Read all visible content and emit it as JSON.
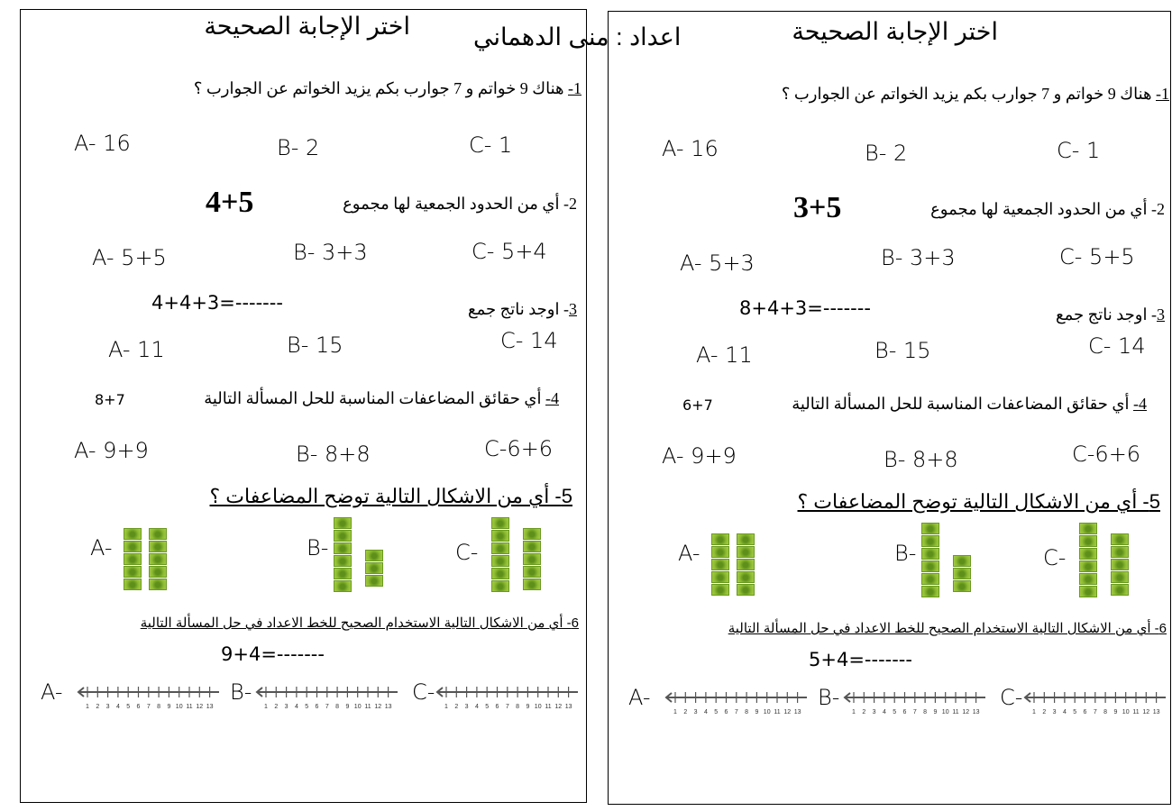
{
  "author": "اعداد : منى الدهماني",
  "colors": {
    "cube": "#8dbb32",
    "line": "#555555"
  },
  "number_line_labels": [
    "1",
    "2",
    "3",
    "4",
    "5",
    "6",
    "7",
    "8",
    "9",
    "10",
    "11",
    "12",
    "13"
  ],
  "worksheets": [
    {
      "title": "اختر الإجابة الصحيحة",
      "q1": {
        "num": "1-",
        "text": " هناك 9 خواتم و 7 جوارب بكم يزيد الخواتم عن الجوارب ؟",
        "a": "A- 16",
        "b": "B- 2",
        "c": "C- 1"
      },
      "q2": {
        "text": "2- أي من الحدود الجمعية لها مجموع",
        "expr": "4+5",
        "a": "A- 5+5",
        "b": "B- 3+3",
        "c": "C- 5+4"
      },
      "q3": {
        "num": "3",
        "text": "- اوجد ناتج  جمع",
        "expr": "4+4+3=-------",
        "a": "A- 11",
        "b": "B- 15",
        "c": "C- 14"
      },
      "q4": {
        "num": "4-",
        "text": "  أي حقائق المضاعفات المناسبة للحل المسألة التالية",
        "expr": "8+7",
        "a": "A- 9+9",
        "b": "B- 8+8",
        "c": "C-6+6"
      },
      "q5": {
        "text": "5-  أي من الاشكال التالية توضح المضاعفات ؟",
        "a": "A-",
        "b": "B-",
        "c": "C-",
        "figures": [
          [
            5,
            5
          ],
          [
            6,
            3
          ],
          [
            6,
            5
          ]
        ]
      },
      "q6": {
        "text": "6-  أي من الاشكال التالية الاستخدام الصحيح للخط الاعداد في حل المسألة التالية",
        "expr": "9+4=-------",
        "a": "A-",
        "b": "B-",
        "c": "C-"
      }
    },
    {
      "title": "اختر الإجابة الصحيحة",
      "q1": {
        "num": "1-",
        "text": " هناك 9 خواتم و 7 جوارب بكم يزيد الخواتم عن الجوارب ؟",
        "a": "A- 16",
        "b": "B- 2",
        "c": "C- 1"
      },
      "q2": {
        "text": "2- أي من الحدود الجمعية لها مجموع",
        "expr": "3+5",
        "a": "A- 5+3",
        "b": "B- 3+3",
        "c": "C- 5+5"
      },
      "q3": {
        "num": "3",
        "text": "- اوجد ناتج  جمع",
        "expr": "8+4+3=-------",
        "a": "A- 11",
        "b": "B- 15",
        "c": "C- 14"
      },
      "q4": {
        "num": "4-",
        "text": "  أي حقائق المضاعفات المناسبة للحل المسألة التالية",
        "expr": "6+7",
        "a": "A- 9+9",
        "b": "B- 8+8",
        "c": "C-6+6"
      },
      "q5": {
        "text": "5-  أي من الاشكال التالية توضح المضاعفات ؟",
        "a": "A-",
        "b": "B-",
        "c": "C-",
        "figures": [
          [
            5,
            5
          ],
          [
            6,
            3
          ],
          [
            6,
            5
          ]
        ]
      },
      "q6": {
        "text": "6-  أي من الاشكال التالية الاستخدام الصحيح للخط الاعداد في حل المسألة التالية",
        "expr": "5+4=-------",
        "a": "A-",
        "b": "B-",
        "c": "C-"
      }
    }
  ]
}
